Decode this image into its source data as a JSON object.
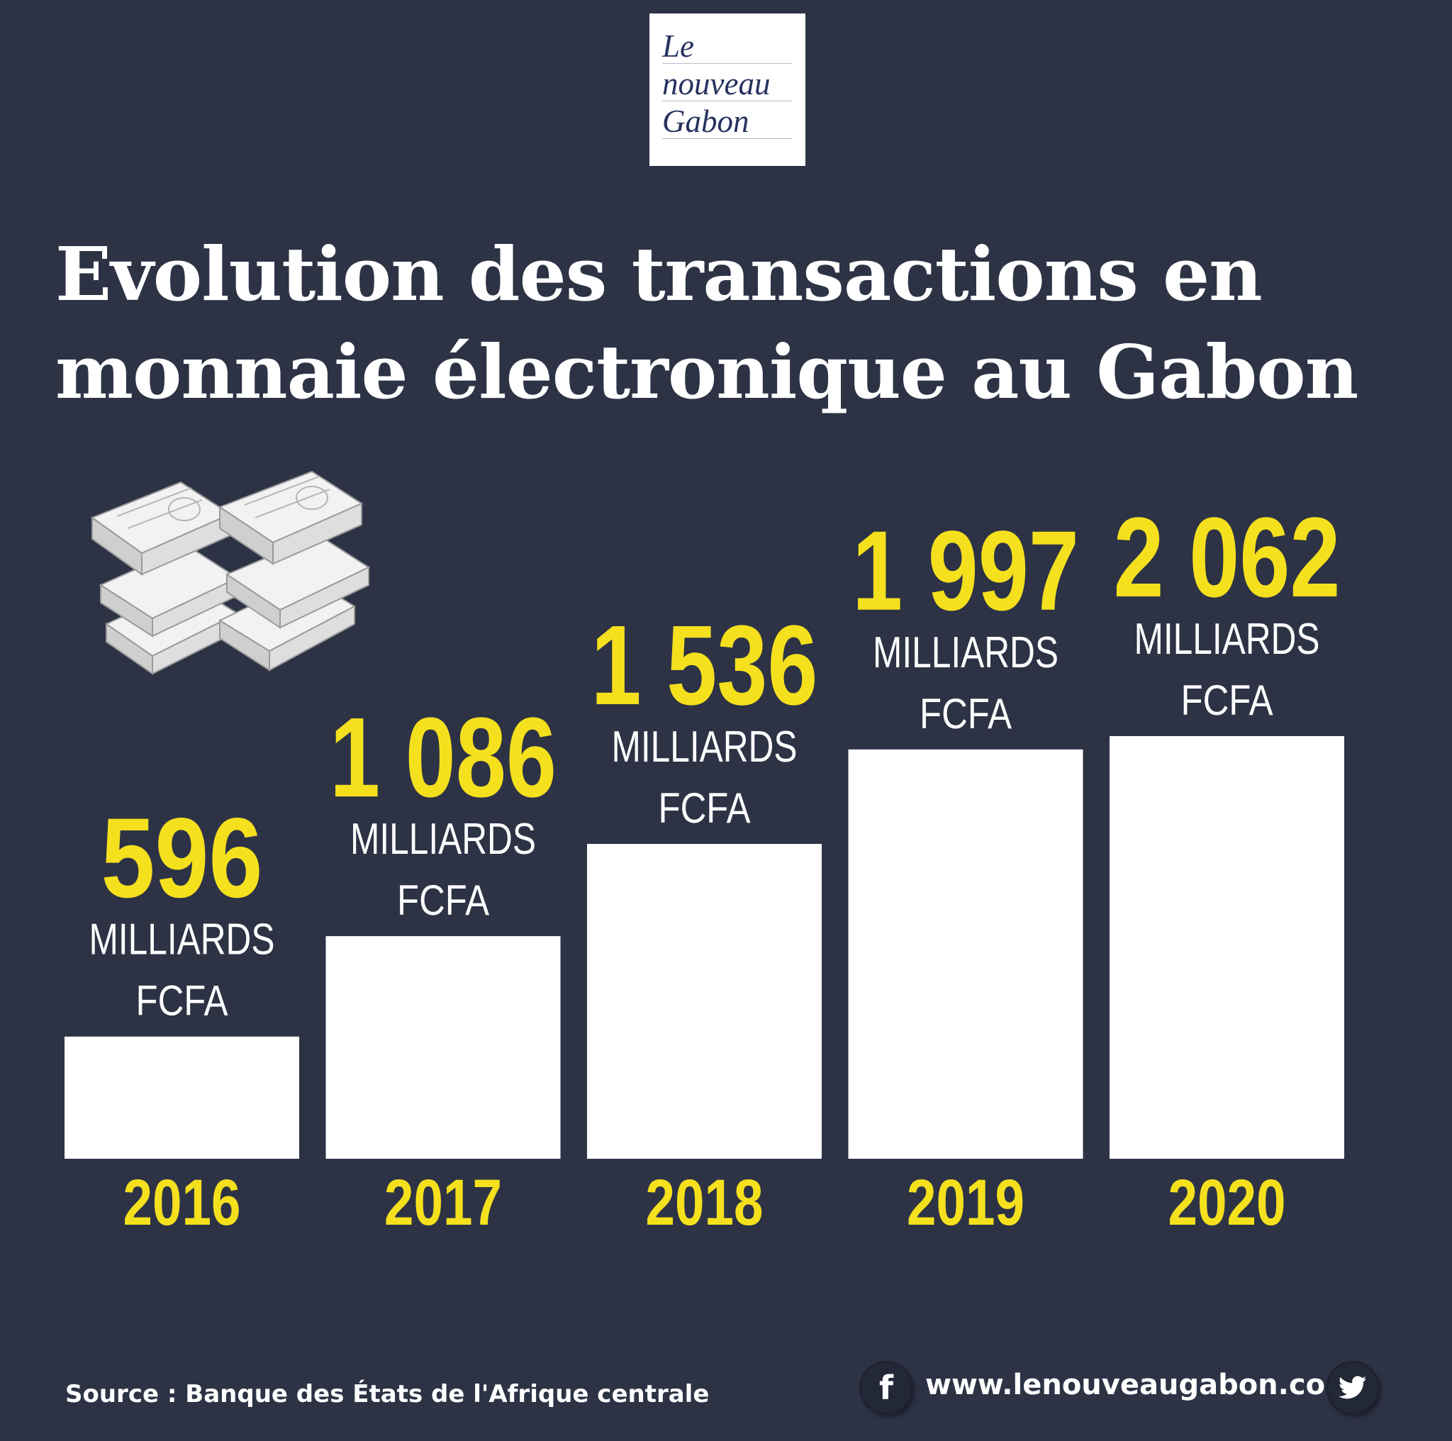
{
  "brand": {
    "logo_lines": [
      "Le",
      "nouveau",
      "Gabon"
    ],
    "website": "www.lenouveaugabon.com"
  },
  "title_lines": [
    "Evolution des transactions en",
    "monnaie électronique au Gabon"
  ],
  "source": "Source : Banque des États de l'Afrique centrale",
  "social": {
    "facebook": "f"
  },
  "colors": {
    "background": "#2d3345",
    "accent": "#f5e01e",
    "bar": "#ffffff"
  },
  "chart_data": {
    "type": "bar",
    "categories": [
      "2016",
      "2017",
      "2018",
      "2019",
      "2020"
    ],
    "values": [
      596,
      1086,
      1536,
      1997,
      2062
    ],
    "value_labels": [
      "596",
      "1 086",
      "1 536",
      "1 997",
      "2 062"
    ],
    "unit_lines": [
      "MILLIARDS",
      "FCFA"
    ],
    "title": "Evolution des transactions en monnaie électronique au Gabon",
    "xlabel": "",
    "ylabel": "",
    "grid": false,
    "legend": "none"
  }
}
